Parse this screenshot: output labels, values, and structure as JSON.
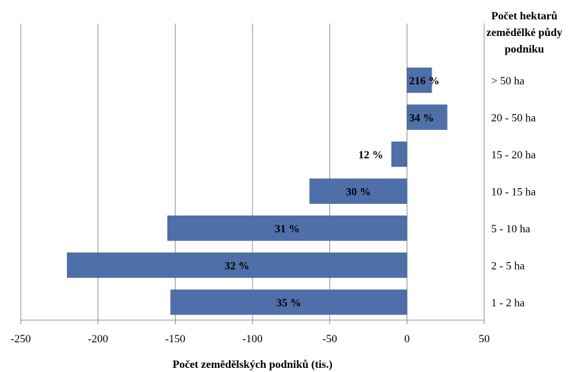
{
  "chart_data": {
    "type": "bar",
    "orientation": "horizontal",
    "categories": [
      "> 50 ha",
      "20 - 50 ha",
      "15 - 20 ha",
      "10 - 15 ha",
      "5 - 10 ha",
      "2 - 5 ha",
      "1 - 2 ha"
    ],
    "values": [
      16,
      26,
      -10,
      -63,
      -155,
      -220,
      -153
    ],
    "data_labels": [
      "216 %",
      "34 %",
      "12 %",
      "30 %",
      "31 %",
      "32 %",
      "35 %"
    ],
    "xlabel": "Počet zemědělských podniků (tis.)",
    "category_axis_title": [
      "Počet hektarů",
      "zemědělké půdy",
      "podniku"
    ],
    "xlim": [
      -250,
      50
    ],
    "xticks": [
      -250,
      -200,
      -150,
      -100,
      -50,
      0,
      50
    ],
    "xtick_labels": [
      "-250",
      "-200",
      "-150",
      "-100",
      "-50",
      "0",
      "50"
    ],
    "grid": "vertical",
    "bar_color": "#4f6fa8"
  }
}
